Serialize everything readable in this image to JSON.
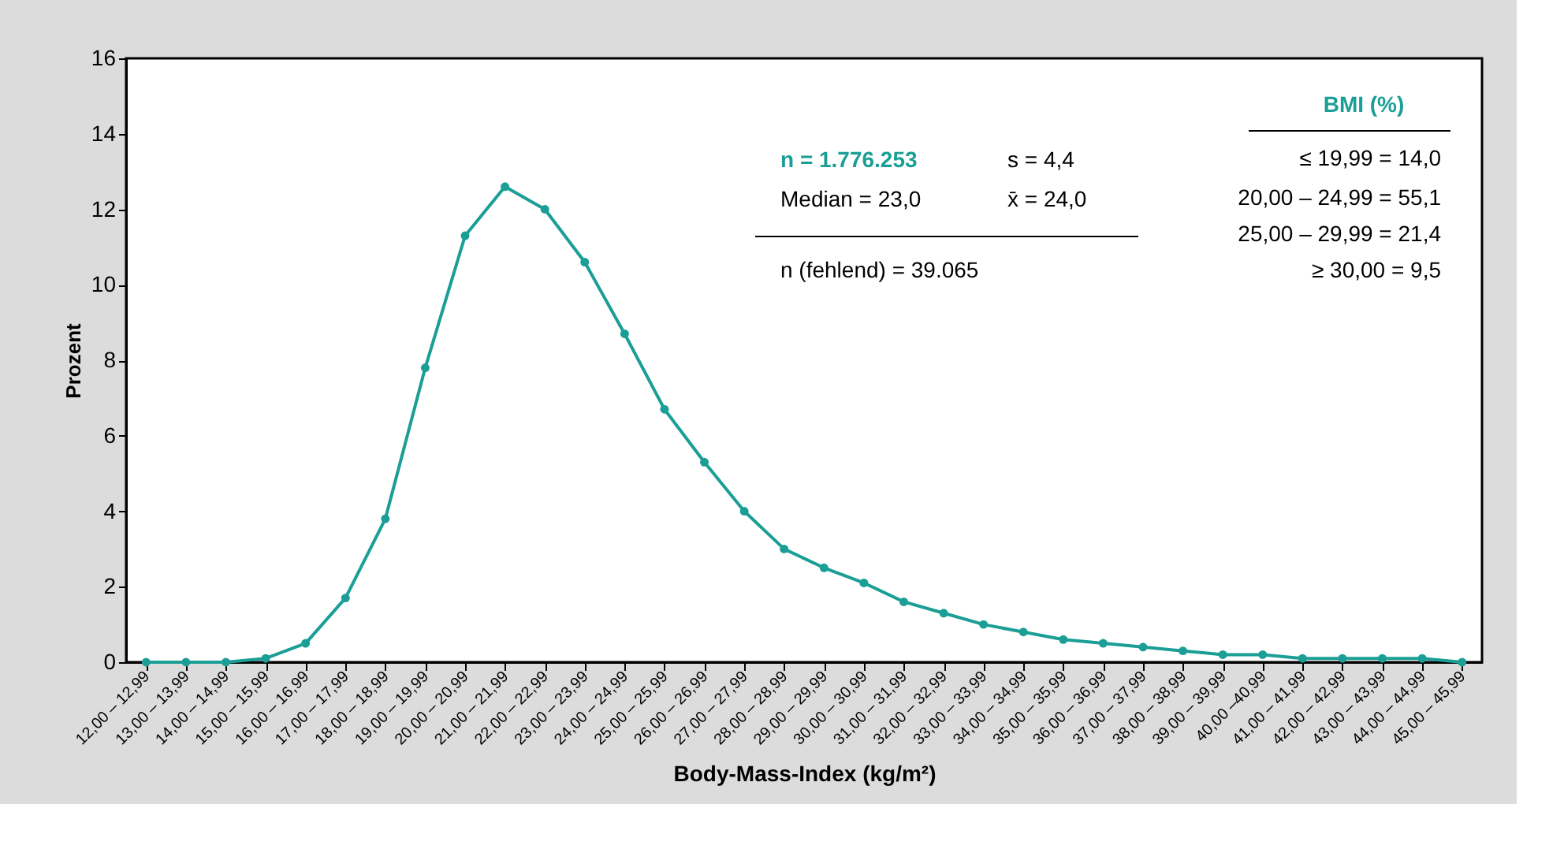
{
  "chart_data": {
    "type": "line",
    "xlabel": "Body-Mass-Index (kg/m²)",
    "ylabel": "Prozent",
    "categories": [
      "12,00 – 12,99",
      "13,00 – 13,99",
      "14,00 – 14,99",
      "15,00 – 15,99",
      "16,00 – 16,99",
      "17,00 – 17,99",
      "18,00 – 18,99",
      "19,00 – 19,99",
      "20,00 – 20,99",
      "21,00 – 21,99",
      "22,00 – 22,99",
      "23,00 – 23,99",
      "24,00 – 24,99",
      "25,00 – 25,99",
      "26,00 – 26,99",
      "27,00 – 27,99",
      "28,00 – 28,99",
      "29,00 – 29,99",
      "30,00 – 30,99",
      "31,00 – 31,99",
      "32,00 – 32,99",
      "33,00 – 33,99",
      "34,00 – 34,99",
      "35,00 – 35,99",
      "36,00 – 36,99",
      "37,00 – 37,99",
      "38,00 – 38,99",
      "39,00 – 39,99",
      "40,00 –40,99",
      "41,00 – 41,99",
      "42,00 – 42,99",
      "43,00 – 43,99",
      "44,00 – 44,99",
      "45,00 – 45,99"
    ],
    "series": [
      {
        "color": "#1a9e96",
        "values": [
          0,
          0,
          0,
          0.1,
          0.5,
          1.7,
          3.8,
          7.8,
          11.3,
          12.6,
          12.0,
          10.6,
          8.7,
          6.7,
          5.3,
          4.0,
          3.0,
          2.5,
          2.1,
          1.6,
          1.3,
          1.0,
          0.8,
          0.6,
          0.5,
          0.4,
          0.3,
          0.2,
          0.2,
          0.1,
          0.1,
          0.1,
          0.1,
          0.0
        ]
      }
    ],
    "ylim": [
      0,
      16
    ],
    "yticks": [
      0,
      2,
      4,
      6,
      8,
      10,
      12,
      14,
      16
    ],
    "grid": false,
    "marker": "circle",
    "line_style": "solid",
    "annotations": [
      "n = 1.776.253",
      "s =   4,4",
      "Median = 23,0",
      "x̄ = 24,0",
      "n (fehlend) = 39.065",
      "BMI (%)",
      "≤ 19,99 = 14,0",
      "20,00 – 24,99 = 55,1",
      "25,00 – 29,99 = 21,4",
      "≥ 30,00 =   9,5"
    ]
  }
}
